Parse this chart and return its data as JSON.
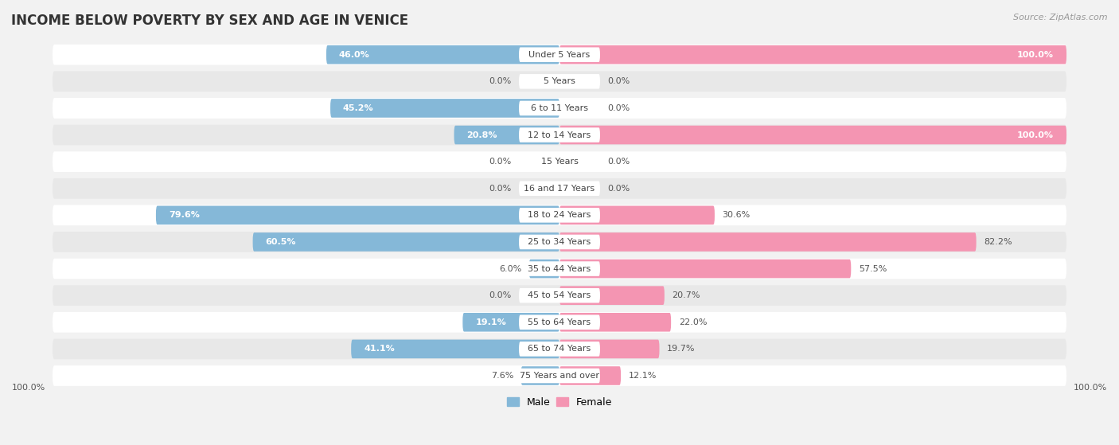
{
  "title": "INCOME BELOW POVERTY BY SEX AND AGE IN VENICE",
  "source": "Source: ZipAtlas.com",
  "categories": [
    "Under 5 Years",
    "5 Years",
    "6 to 11 Years",
    "12 to 14 Years",
    "15 Years",
    "16 and 17 Years",
    "18 to 24 Years",
    "25 to 34 Years",
    "35 to 44 Years",
    "45 to 54 Years",
    "55 to 64 Years",
    "65 to 74 Years",
    "75 Years and over"
  ],
  "male_values": [
    46.0,
    0.0,
    45.2,
    20.8,
    0.0,
    0.0,
    79.6,
    60.5,
    6.0,
    0.0,
    19.1,
    41.1,
    7.6
  ],
  "female_values": [
    100.0,
    0.0,
    0.0,
    100.0,
    0.0,
    0.0,
    30.6,
    82.2,
    57.5,
    20.7,
    22.0,
    19.7,
    12.1
  ],
  "male_color": "#85b8d8",
  "female_color": "#f495b2",
  "male_label": "Male",
  "female_label": "Female",
  "bg_color": "#f2f2f2",
  "row_bg": "#e8e8e8",
  "row_white": "#ffffff",
  "label_pill_color": "#ffffff",
  "max_value": 100.0,
  "title_fontsize": 12,
  "label_fontsize": 8,
  "bar_value_fontsize": 8,
  "source_fontsize": 8,
  "axis_label": "100.0%"
}
